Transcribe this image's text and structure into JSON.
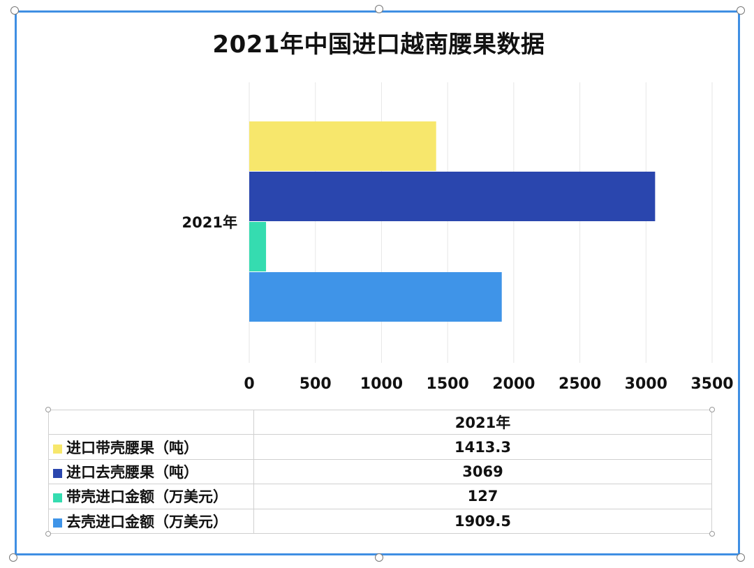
{
  "chart_data": {
    "type": "bar",
    "orientation": "horizontal",
    "title": "2021年中国进口越南腰果数据",
    "categories": [
      "2021年"
    ],
    "xlim": [
      0,
      3500
    ],
    "x_ticks": [
      "0",
      "500",
      "1000",
      "1500",
      "2000",
      "2500",
      "3000",
      "3500"
    ],
    "grid": true,
    "series": [
      {
        "name": "进口带壳腰果（吨）",
        "values": [
          1413.3
        ],
        "color": "#f7e76c"
      },
      {
        "name": "进口去壳腰果（吨）",
        "values": [
          3069
        ],
        "color": "#2a46ae"
      },
      {
        "name": "带壳进口金额（万美元）",
        "values": [
          127
        ],
        "color": "#35dcb0"
      },
      {
        "name": "去壳进口金额（万美元）",
        "values": [
          1909.5
        ],
        "color": "#3f94e8"
      }
    ]
  },
  "table": {
    "header": "2021年",
    "rows": [
      {
        "label": "进口带壳腰果（吨）",
        "value": "1413.3"
      },
      {
        "label": "进口去壳腰果（吨）",
        "value": "3069"
      },
      {
        "label": "带壳进口金额（万美元）",
        "value": "127"
      },
      {
        "label": "去壳进口金额（万美元）",
        "value": "1909.5"
      }
    ]
  }
}
